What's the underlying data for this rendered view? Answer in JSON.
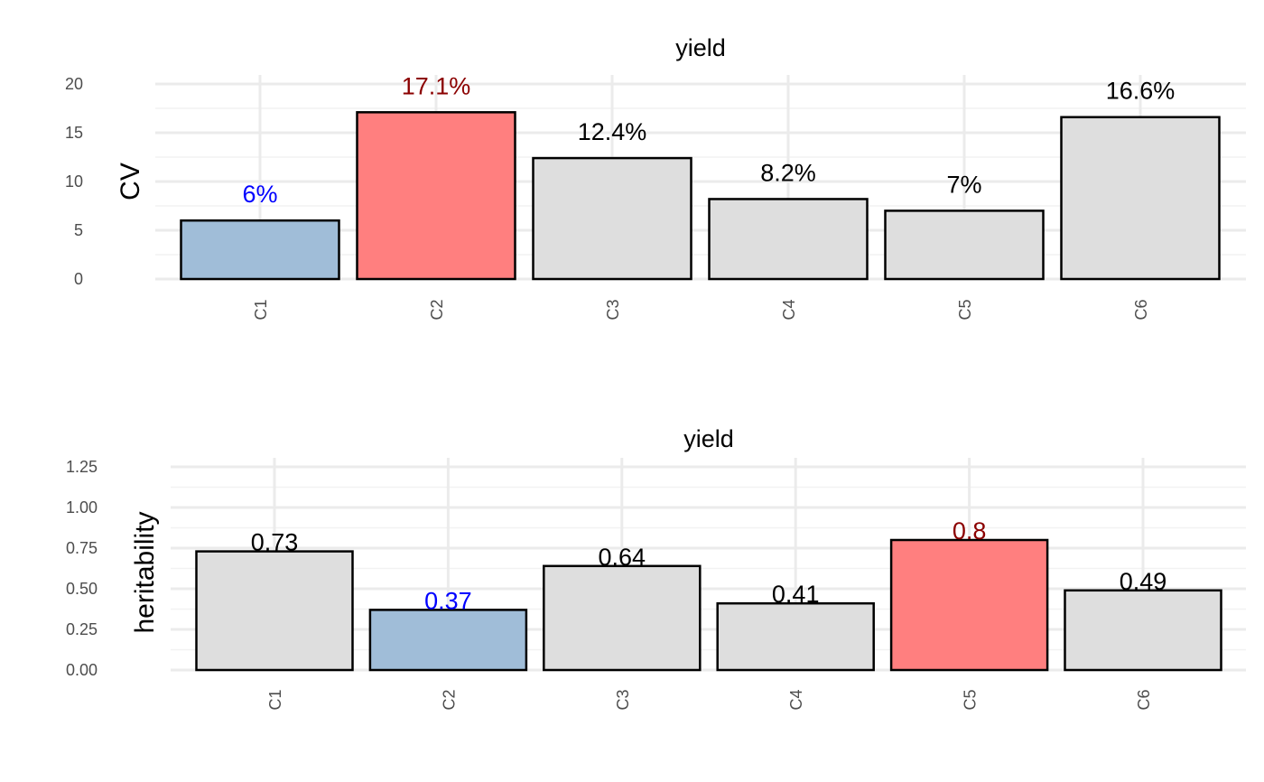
{
  "colors": {
    "low": "#a0bdd8",
    "high": "#ff7f7f",
    "neutral": "#dedede",
    "low_label": "#0000ff",
    "high_label": "#8b0000",
    "neutral_label": "#000000"
  },
  "chart_data": [
    {
      "type": "bar",
      "title": "yield",
      "xlabel": "",
      "ylabel": "CV",
      "categories": [
        "C1",
        "C2",
        "C3",
        "C4",
        "C5",
        "C6"
      ],
      "values": [
        6.0,
        17.1,
        12.4,
        8.2,
        7.0,
        16.6
      ],
      "labels": [
        "6%",
        "17.1%",
        "12.4%",
        "8.2%",
        "7%",
        "16.6%"
      ],
      "highlight": [
        "low",
        "high",
        "neutral",
        "neutral",
        "neutral",
        "neutral"
      ],
      "ylim": [
        0,
        20
      ],
      "yticks": [
        0,
        5,
        10,
        15,
        20
      ],
      "ytick_labels": [
        "0",
        "5",
        "10",
        "15",
        "20"
      ],
      "grid": true
    },
    {
      "type": "bar",
      "title": "yield",
      "xlabel": "",
      "ylabel": "heritability",
      "categories": [
        "C1",
        "C2",
        "C3",
        "C4",
        "C5",
        "C6"
      ],
      "values": [
        0.73,
        0.37,
        0.64,
        0.41,
        0.8,
        0.49
      ],
      "labels": [
        "0.73",
        "0.37",
        "0.64",
        "0.41",
        "0.8",
        "0.49"
      ],
      "highlight": [
        "neutral",
        "low",
        "neutral",
        "neutral",
        "high",
        "neutral"
      ],
      "ylim": [
        0,
        1.25
      ],
      "yticks": [
        0,
        0.25,
        0.5,
        0.75,
        1.0,
        1.25
      ],
      "ytick_labels": [
        "0.00",
        "0.25",
        "0.50",
        "0.75",
        "1.00",
        "1.25"
      ],
      "grid": true
    }
  ]
}
